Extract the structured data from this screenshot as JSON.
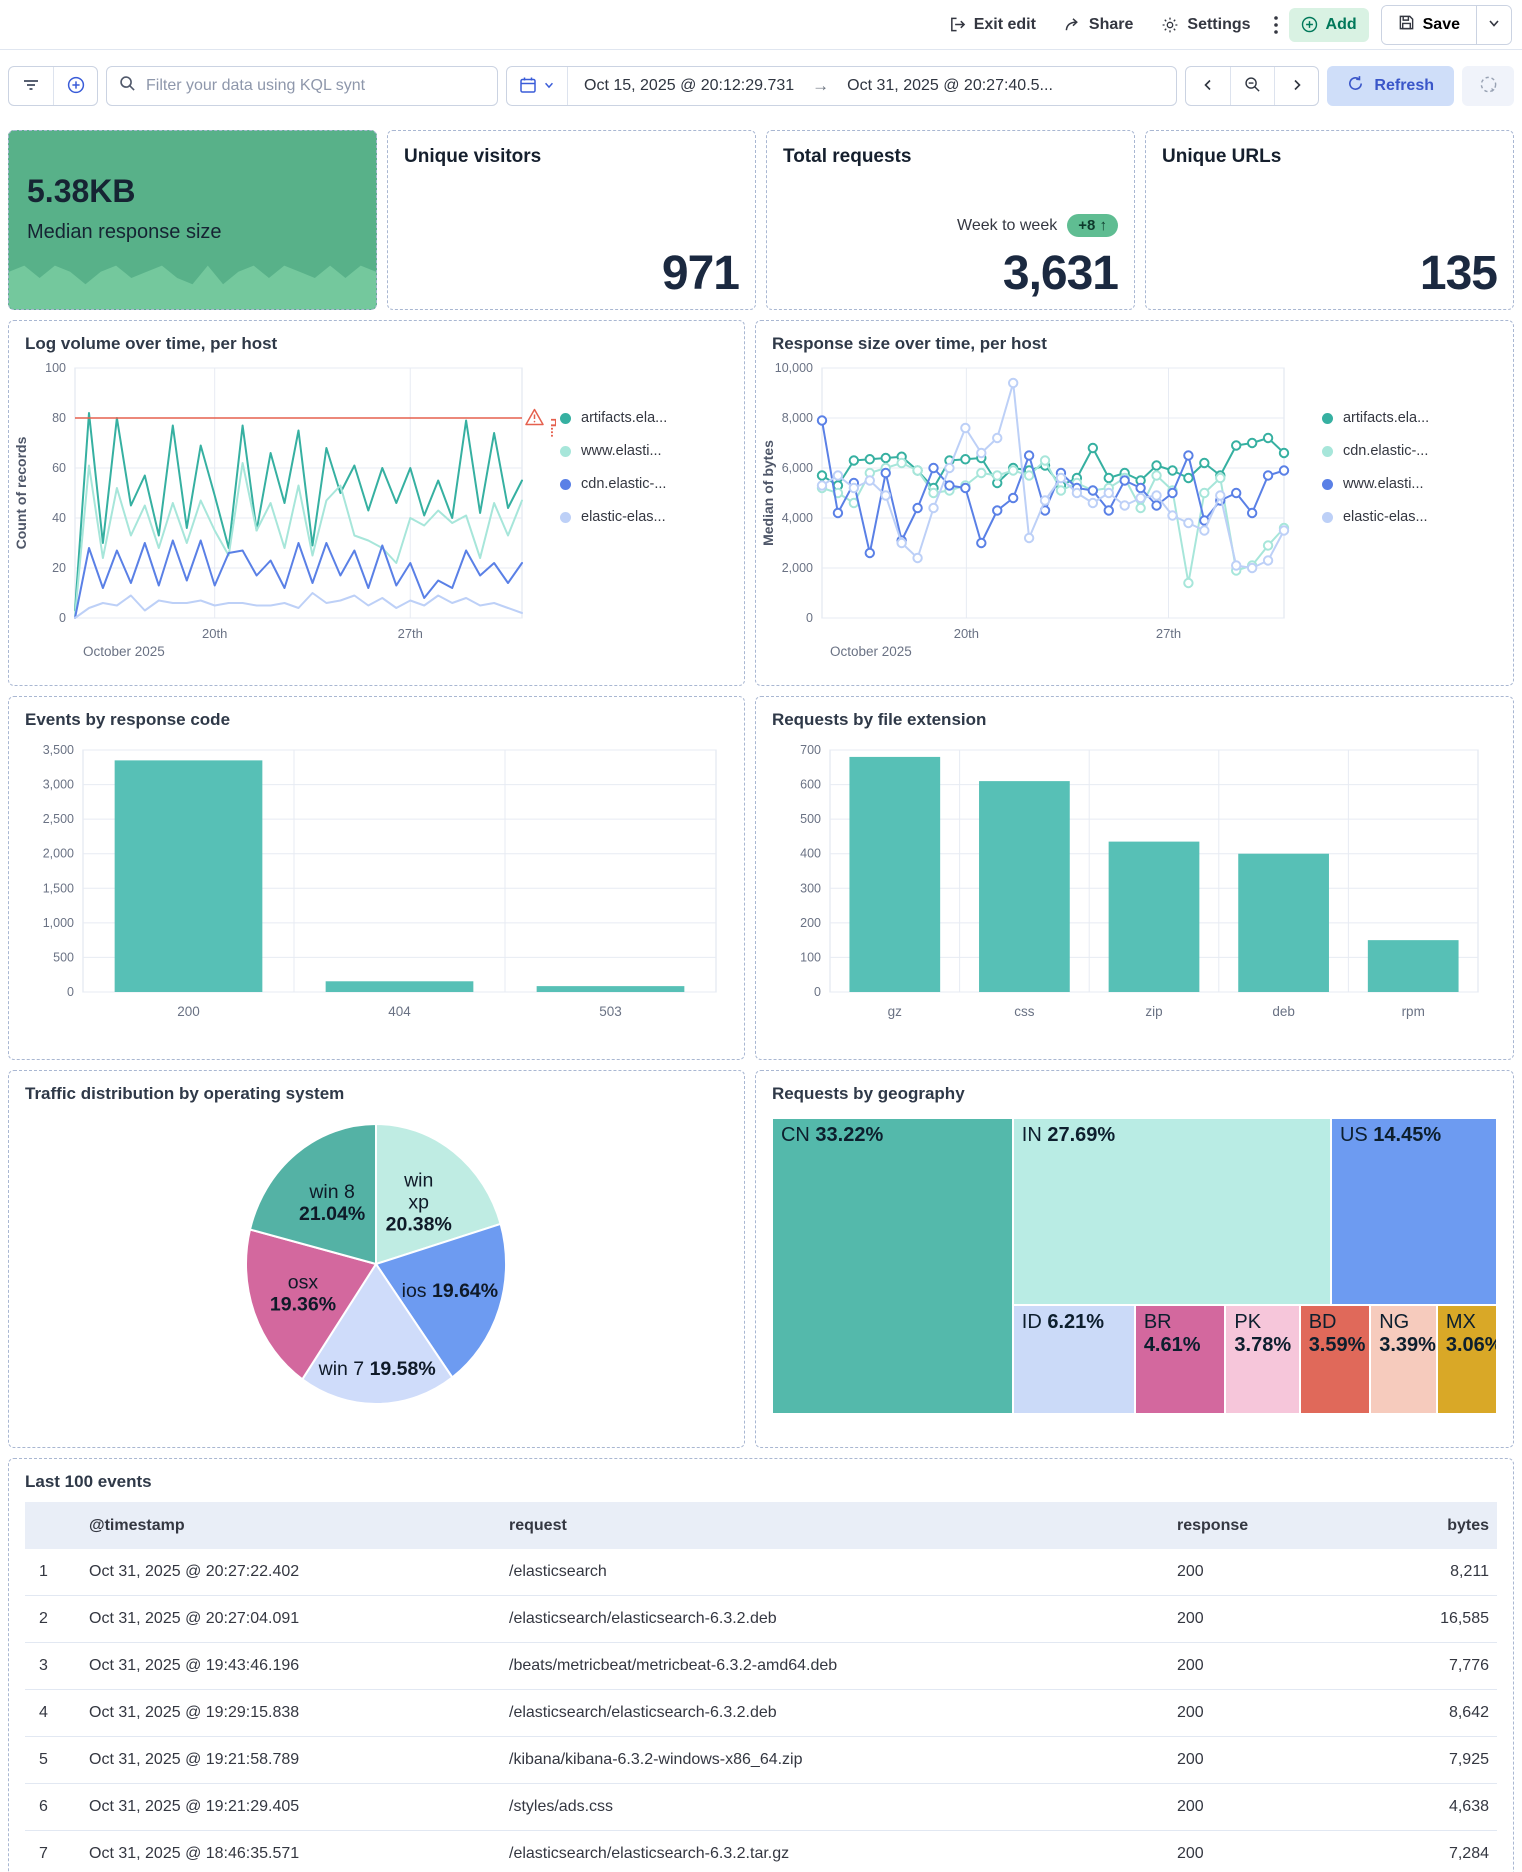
{
  "toolbar": {
    "exit_edit": "Exit edit",
    "share": "Share",
    "settings": "Settings",
    "add": "Add",
    "save": "Save"
  },
  "filter_bar": {
    "search_placeholder": "Filter your data using KQL synt",
    "date_from": "Oct 15, 2025 @ 20:12:29.731",
    "arrow": "→",
    "date_to": "Oct 31, 2025 @ 20:27:40.5...",
    "refresh_label": "Refresh"
  },
  "metrics": {
    "median_response": {
      "value": "5.38",
      "unit": "KB",
      "label": "Median response size",
      "bg_color": "#58b189",
      "spark_color": "#74c89d",
      "spark": [
        6,
        7,
        5,
        7,
        6,
        4,
        6,
        7,
        5,
        6,
        7,
        5,
        4,
        7,
        4,
        6,
        7,
        5,
        7,
        6,
        5,
        7,
        5,
        7,
        6
      ]
    },
    "unique_visitors": {
      "title": "Unique visitors",
      "value": "971"
    },
    "total_requests": {
      "title": "Total requests",
      "value": "3,631",
      "wow_label": "Week to week",
      "wow_delta": "+8 ↑",
      "wow_color": "#5fbd92"
    },
    "unique_urls": {
      "title": "Unique URLs",
      "value": "135"
    }
  },
  "chart_data": [
    {
      "id": "log_volume",
      "type": "line",
      "title": "Log volume over time, per host",
      "ylabel": "Count of records",
      "ylim": [
        0,
        100
      ],
      "yticks": [
        0,
        20,
        40,
        60,
        80,
        100
      ],
      "xlabel": "October 2025",
      "xticks": [
        {
          "f": 0.3125,
          "label": "20th"
        },
        {
          "f": 0.75,
          "label": "27th"
        }
      ],
      "grid": true,
      "legend_position": "right",
      "markers": false,
      "threshold": {
        "value": 80,
        "color": "#e5604e",
        "label": "H..."
      },
      "series": [
        {
          "name": "artifacts.ela...",
          "color": "#36b0a1",
          "values": [
            3,
            82,
            30,
            80,
            45,
            57,
            33,
            77,
            36,
            69,
            49,
            28,
            77,
            35,
            66,
            46,
            75,
            29,
            68,
            50,
            61,
            43,
            60,
            46,
            60,
            41,
            55,
            40,
            79,
            42,
            74,
            44,
            55
          ]
        },
        {
          "name": "www.elasti...",
          "color": "#a7e6da",
          "values": [
            1,
            61,
            24,
            52,
            33,
            45,
            28,
            46,
            30,
            47,
            35,
            25,
            62,
            35,
            46,
            28,
            53,
            25,
            47,
            53,
            33,
            31,
            28,
            22,
            40,
            37,
            43,
            38,
            41,
            24,
            46,
            33,
            47
          ]
        },
        {
          "name": "cdn.elastic-...",
          "color": "#5a80e6",
          "values": [
            0,
            28,
            12,
            27,
            14,
            30,
            13,
            31,
            15,
            31,
            13,
            26,
            27,
            17,
            23,
            12,
            30,
            14,
            30,
            17,
            27,
            12,
            29,
            13,
            22,
            8,
            15,
            12,
            27,
            17,
            22,
            14,
            22
          ]
        },
        {
          "name": "elastic-elas...",
          "color": "#bdd0f7",
          "values": [
            0,
            4,
            6,
            5,
            9,
            3,
            7,
            6,
            6,
            7,
            5,
            6,
            6,
            5,
            5,
            6,
            4,
            10,
            6,
            7,
            9,
            5,
            8,
            4,
            7,
            5,
            9,
            6,
            8,
            5,
            6,
            4,
            2
          ]
        }
      ]
    },
    {
      "id": "response_size",
      "type": "line",
      "title": "Response size over time, per host",
      "ylabel": "Median of bytes",
      "ylim": [
        0,
        10000
      ],
      "yticks": [
        0,
        2000,
        4000,
        6000,
        8000,
        10000
      ],
      "xlabel": "October 2025",
      "xticks": [
        {
          "f": 0.3125,
          "label": "20th"
        },
        {
          "f": 0.75,
          "label": "27th"
        }
      ],
      "grid": true,
      "legend_position": "right",
      "markers": true,
      "series": [
        {
          "name": "artifacts.ela...",
          "color": "#36b0a1",
          "values": [
            5700,
            5300,
            6300,
            6350,
            6400,
            6450,
            5900,
            5200,
            6300,
            6350,
            6400,
            5400,
            6000,
            5900,
            6100,
            5300,
            5600,
            6800,
            5600,
            5800,
            5500,
            6100,
            5900,
            5600,
            6200,
            5700,
            6900,
            7000,
            7200,
            6600
          ]
        },
        {
          "name": "cdn.elastic-...",
          "color": "#a7e6da",
          "values": [
            5200,
            5000,
            4600,
            5800,
            6000,
            6200,
            5900,
            5000,
            5100,
            5300,
            5800,
            5700,
            5900,
            5700,
            6300,
            5100,
            5400,
            5100,
            5200,
            5600,
            4400,
            5700,
            5100,
            1400,
            5000,
            5600,
            1900,
            2100,
            2900,
            3600
          ]
        },
        {
          "name": "www.elasti...",
          "color": "#5a80e6",
          "values": [
            7900,
            4200,
            5400,
            2600,
            5800,
            3100,
            4400,
            6000,
            5300,
            5200,
            3000,
            4300,
            4800,
            6500,
            4300,
            5800,
            5200,
            5100,
            4300,
            5500,
            5200,
            4500,
            5000,
            6500,
            3900,
            4700,
            5000,
            4200,
            5700,
            5900
          ]
        },
        {
          "name": "elastic-elas...",
          "color": "#bdd0f7",
          "values": [
            5300,
            5700,
            5200,
            5500,
            4900,
            3000,
            2400,
            4400,
            6000,
            7600,
            6600,
            7200,
            9400,
            3200,
            4700,
            5600,
            5000,
            4600,
            5000,
            4500,
            4800,
            4900,
            4100,
            3800,
            3500,
            4900,
            2100,
            2000,
            2300,
            3500
          ]
        }
      ]
    },
    {
      "id": "events_by_code",
      "type": "bar",
      "title": "Events by response code",
      "categories": [
        "200",
        "404",
        "503"
      ],
      "values": [
        3350,
        155,
        85
      ],
      "ylim": [
        0,
        3500
      ],
      "yticks": [
        0,
        500,
        1000,
        1500,
        2000,
        2500,
        3000,
        3500
      ],
      "bar_color": "#57c0b6",
      "grid": true
    },
    {
      "id": "file_ext",
      "type": "bar",
      "title": "Requests by file extension",
      "categories": [
        "gz",
        "css",
        "zip",
        "deb",
        "rpm"
      ],
      "values": [
        680,
        610,
        435,
        400,
        150
      ],
      "ylim": [
        0,
        700
      ],
      "yticks": [
        0,
        100,
        200,
        300,
        400,
        500,
        600,
        700
      ],
      "bar_color": "#57c0b6",
      "grid": true
    },
    {
      "id": "os_pie",
      "type": "pie",
      "title": "Traffic distribution by operating system",
      "slices": [
        {
          "name": "win xp",
          "pct": 20.38,
          "color": "#bfece3",
          "lr": 0.55,
          "lines": [
            [
              {
                "t": "win"
              }
            ],
            [
              {
                "t": "xp"
              }
            ],
            [
              {
                "t": "20.38%",
                "b": true
              }
            ]
          ]
        },
        {
          "name": "ios",
          "pct": 19.64,
          "color": "#6d9bf1",
          "lr": 0.6,
          "lines": [
            [
              {
                "t": "ios "
              },
              {
                "t": "19.64%",
                "b": true
              }
            ]
          ]
        },
        {
          "name": "win 7",
          "pct": 19.58,
          "color": "#cfdcfa",
          "lr": 0.75,
          "lines": [
            [
              {
                "t": "win 7 "
              },
              {
                "t": "19.58%",
                "b": true
              }
            ]
          ]
        },
        {
          "name": "osx",
          "pct": 19.36,
          "color": "#d3689e",
          "lr": 0.6,
          "lines": [
            [
              {
                "t": "osx"
              }
            ],
            [
              {
                "t": "19.36%",
                "b": true
              }
            ]
          ]
        },
        {
          "name": "win 8",
          "pct": 21.04,
          "color": "#54b2a5",
          "lr": 0.55,
          "lines": [
            [
              {
                "t": "win 8"
              }
            ],
            [
              {
                "t": "21.04%",
                "b": true
              }
            ]
          ]
        }
      ]
    },
    {
      "id": "geo",
      "type": "treemap",
      "title": "Requests by geography",
      "items": [
        {
          "code": "CN",
          "pct": 33.22,
          "color": "#54b9ab"
        },
        {
          "code": "IN",
          "pct": 27.69,
          "color": "#b9ece4"
        },
        {
          "code": "US",
          "pct": 14.45,
          "color": "#6d9bf1"
        },
        {
          "code": "ID",
          "pct": 6.21,
          "color": "#cbdaf8"
        },
        {
          "code": "BR",
          "pct": 4.61,
          "color": "#d3689e"
        },
        {
          "code": "PK",
          "pct": 3.78,
          "color": "#f6c6da"
        },
        {
          "code": "BD",
          "pct": 3.59,
          "color": "#e0695a"
        },
        {
          "code": "NG",
          "pct": 3.39,
          "color": "#f6cbbd"
        },
        {
          "code": "MX",
          "pct": 3.06,
          "color": "#d9a827"
        }
      ]
    }
  ],
  "table": {
    "title": "Last 100 events",
    "columns": [
      "@timestamp",
      "request",
      "response",
      "bytes"
    ],
    "rows": [
      [
        "Oct 31, 2025 @ 20:27:22.402",
        "/elasticsearch",
        "200",
        "8,211"
      ],
      [
        "Oct 31, 2025 @ 20:27:04.091",
        "/elasticsearch/elasticsearch-6.3.2.deb",
        "200",
        "16,585"
      ],
      [
        "Oct 31, 2025 @ 19:43:46.196",
        "/beats/metricbeat/metricbeat-6.3.2-amd64.deb",
        "200",
        "7,776"
      ],
      [
        "Oct 31, 2025 @ 19:29:15.838",
        "/elasticsearch/elasticsearch-6.3.2.deb",
        "200",
        "8,642"
      ],
      [
        "Oct 31, 2025 @ 19:21:58.789",
        "/kibana/kibana-6.3.2-windows-x86_64.zip",
        "200",
        "7,925"
      ],
      [
        "Oct 31, 2025 @ 19:21:29.405",
        "/styles/ads.css",
        "200",
        "4,638"
      ],
      [
        "Oct 31, 2025 @ 18:46:35.571",
        "/elasticsearch/elasticsearch-6.3.2.tar.gz",
        "200",
        "7,284"
      ]
    ]
  }
}
